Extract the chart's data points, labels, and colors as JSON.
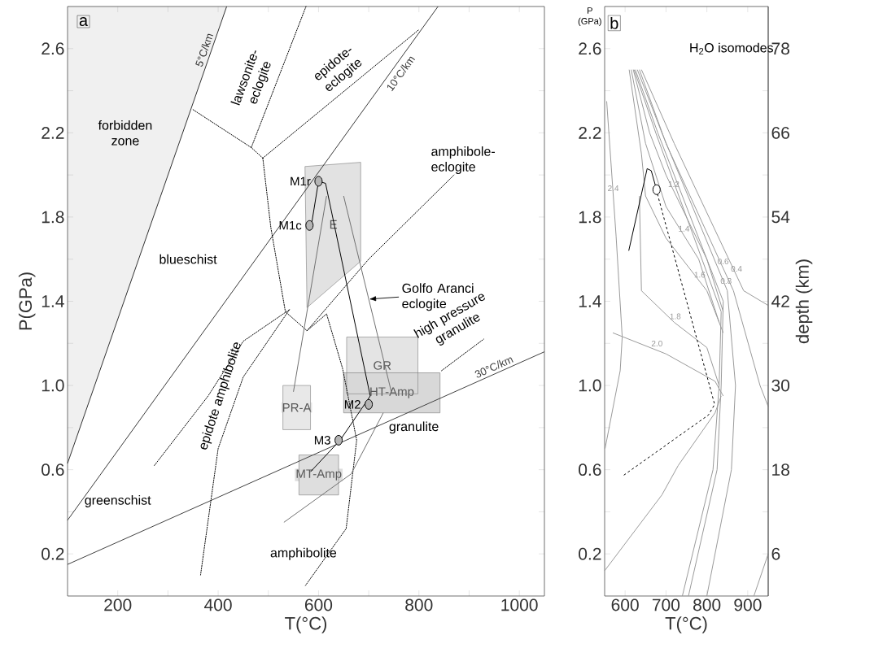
{
  "chart_data": [
    {
      "type": "line",
      "title": "a",
      "xlabel": "T(°C)",
      "ylabel": "P(GPa)",
      "xlim": [
        100,
        1050
      ],
      "ylim": [
        0,
        2.8
      ],
      "xticks": [
        200,
        {
          "value": 300,
          "label": null
        },
        400,
        {
          "value": 500,
          "label": null
        },
        600,
        {
          "value": 700,
          "label": null
        },
        800,
        {
          "value": 900,
          "label": null
        },
        1000
      ],
      "yticks": [
        0.2,
        {
          "value": 0.4,
          "label": null
        },
        0.6,
        {
          "value": 0.8,
          "label": null
        },
        {
          "value": 1,
          "label": "1.0"
        },
        {
          "value": 1.2,
          "label": null
        },
        1.4,
        {
          "value": 1.6,
          "label": null
        },
        1.8,
        {
          "value": 2,
          "label": null
        },
        2.2,
        {
          "value": 2.4,
          "label": null
        },
        2.6
      ],
      "series": [
        {
          "type": "area",
          "name": "E",
          "color": "#e2e2e2",
          "x": [
            573,
            684,
            684,
            577
          ],
          "values": [
            2.04,
            2.06,
            1.59,
            1.37
          ]
        },
        {
          "type": "area",
          "name": "GR",
          "color": "#e4e4e4",
          "x": [
            656,
            798,
            798,
            656
          ],
          "values": [
            0.96,
            0.96,
            1.23,
            1.23
          ]
        },
        {
          "type": "area",
          "name": "HT-Amp",
          "color": "#d8d8d8",
          "x": [
            650,
            842,
            842,
            650
          ],
          "values": [
            0.87,
            0.87,
            1.06,
            1.06
          ]
        },
        {
          "type": "area",
          "name": "PR-A",
          "color": "#e8e8e8",
          "x": [
            529,
            584,
            584,
            529
          ],
          "values": [
            0.79,
            0.79,
            1.0,
            1.0
          ]
        },
        {
          "type": "area",
          "name": "MT-Amp",
          "color": "#dedede",
          "x": [
            561,
            640,
            640,
            561
          ],
          "values": [
            0.48,
            0.48,
            0.67,
            0.67
          ]
        },
        {
          "name": "5°C/km",
          "color": "#303030",
          "line_style": "solid",
          "x": [
            100,
            417
          ],
          "values": [
            0.63,
            2.8
          ]
        },
        {
          "name": "10°C/km",
          "color": "#383838",
          "line_style": "solid",
          "x": [
            100,
            838
          ],
          "values": [
            0.36,
            2.8
          ]
        },
        {
          "name": "30°C/km",
          "color": "#404040",
          "line_style": "solid",
          "x": [
            100,
            1050
          ],
          "values": [
            0.15,
            1.16
          ]
        },
        {
          "color": "#000000",
          "line_style": "dotted",
          "x": [
            350,
            466,
            489
          ],
          "values": [
            2.31,
            2.13,
            2.08
          ]
        },
        {
          "color": "#000000",
          "line_style": "dotted",
          "x": [
            466,
            575
          ],
          "values": [
            2.13,
            2.8
          ]
        },
        {
          "color": "#000000",
          "line_style": "dotted",
          "x": [
            489,
            800
          ],
          "values": [
            2.08,
            2.69
          ]
        },
        {
          "color": "#000000",
          "line_style": "dotted",
          "x": [
            489,
            505,
            534,
            577
          ],
          "values": [
            2.08,
            1.75,
            1.35,
            1.26
          ]
        },
        {
          "color": "#000000",
          "line_style": "dotted",
          "x": [
            577,
            700,
            870
          ],
          "values": [
            1.26,
            1.6,
            2.0
          ]
        },
        {
          "color": "#000000",
          "line_style": "dotted",
          "x": [
            845,
            929
          ],
          "values": [
            1.07,
            1.22
          ]
        },
        {
          "color": "#000000",
          "line_style": "dotted",
          "x": [
            273,
            380,
            450,
            542
          ],
          "values": [
            0.62,
            0.95,
            1.21,
            1.36
          ]
        },
        {
          "color": "#000000",
          "line_style": "dotted",
          "x": [
            542,
            450,
            400,
            365
          ],
          "values": [
            1.36,
            1.04,
            0.7,
            0.1
          ]
        },
        {
          "color": "#000000",
          "line_style": "dotted",
          "x": [
            577,
            616,
            648,
            676,
            655,
            574
          ],
          "values": [
            1.26,
            1.34,
            1.08,
            0.74,
            0.32,
            0.05
          ]
        },
        {
          "color": "#707070",
          "line_style": "solid",
          "x": [
            616,
            550
          ],
          "values": [
            1.9,
            0.97
          ]
        },
        {
          "color": "#707070",
          "line_style": "solid",
          "x": [
            650,
            745
          ],
          "values": [
            1.9,
            0.97
          ]
        },
        {
          "color": "#707070",
          "line_style": "solid",
          "x": [
            729,
            665,
            531
          ],
          "values": [
            0.87,
            0.58,
            0.35
          ]
        },
        {
          "color": "#000000",
          "line_style": "solid",
          "x": [
            585,
            600,
            614,
            703,
            643,
            584
          ],
          "values": [
            1.75,
            1.97,
            1.96,
            0.95,
            0.74,
            0.59
          ]
        },
        {
          "type": "scatter",
          "name": "M1r",
          "color": "#b4b4b4",
          "marker": "circle",
          "x": [
            600
          ],
          "values": [
            1.97
          ]
        },
        {
          "type": "scatter",
          "name": "M1c",
          "color": "#b4b4b4",
          "marker": "circle",
          "x": [
            582
          ],
          "values": [
            1.76
          ]
        },
        {
          "type": "scatter",
          "name": "M2",
          "color": "#b4b4b4",
          "marker": "circle",
          "x": [
            700
          ],
          "values": [
            0.91
          ]
        },
        {
          "type": "scatter",
          "name": "M3",
          "color": "#b4b4b4",
          "marker": "circle",
          "x": [
            640
          ],
          "values": [
            0.74
          ]
        }
      ],
      "annotations": [
        "lawsonite-eclogite",
        "epidote-eclogite",
        "amphibole-eclogite",
        "blueschist",
        {
          "text": "Golfo Aranci eclogite",
          "x": 700,
          "y": 1.41
        },
        "high pressure granulite",
        "epidote amphibolite",
        "greenschist",
        "amphibolite",
        "granulite",
        "forbidden zone"
      ]
    },
    {
      "type": "line",
      "title": "b",
      "xlabel": "T(°C)",
      "ylabel": "P (GPa)",
      "y2label": "depth (km)",
      "xlim": [
        550,
        950
      ],
      "ylim": [
        0,
        2.8
      ],
      "xticks": [
        600,
        700,
        800,
        900
      ],
      "yticks": [
        0.2,
        {
          "value": 0.4,
          "label": null
        },
        0.6,
        {
          "value": 0.8,
          "label": null
        },
        {
          "value": 1,
          "label": "1.0"
        },
        {
          "value": 1.2,
          "label": null
        },
        1.4,
        {
          "value": 1.6,
          "label": null
        },
        1.8,
        {
          "value": 2,
          "label": null
        },
        2.2,
        {
          "value": 2.4,
          "label": null
        },
        2.6
      ],
      "y2lim": [
        0,
        84
      ],
      "y2ticks": [
        6,
        {
          "value": 12,
          "label": null
        },
        18,
        {
          "value": 24,
          "label": null
        },
        30,
        {
          "value": 36,
          "label": null
        },
        42,
        {
          "value": 48,
          "label": null
        },
        54,
        {
          "value": 60,
          "label": null
        },
        66,
        {
          "value": 72,
          "label": null
        },
        78
      ],
      "series": [
        {
          "name": "0.4",
          "color": "#9a9a9a",
          "line_style": "solid",
          "x": [
            640,
            720,
            890,
            950
          ],
          "values": [
            2.5,
            2.15,
            1.45,
            1.38
          ]
        },
        {
          "name": "0.6",
          "color": "#9a9a9a",
          "line_style": "solid",
          "x": [
            635,
            700,
            865,
            930,
            950
          ],
          "values": [
            2.5,
            2.15,
            1.45,
            1.0,
            0.9
          ]
        },
        {
          "name": "0.8",
          "color": "#9a9a9a",
          "line_style": "solid",
          "x": [
            630,
            690,
            850,
            870,
            860,
            800
          ],
          "values": [
            2.5,
            2.2,
            1.45,
            1.0,
            0.6,
            0.0
          ]
        },
        {
          "color": "#9a9a9a",
          "line_style": "solid",
          "x": [
            625,
            680,
            840,
            835,
            825,
            755
          ],
          "values": [
            2.5,
            2.2,
            1.4,
            1.0,
            0.6,
            0.0
          ]
        },
        {
          "color": "#9a9a9a",
          "line_style": "solid",
          "x": [
            622,
            675,
            835,
            830,
            815,
            740
          ],
          "values": [
            2.5,
            2.2,
            1.35,
            1.0,
            0.6,
            0.0
          ]
        },
        {
          "name": "1.2",
          "color": "#9a9a9a",
          "line_style": "solid",
          "x": [
            620,
            660,
            700,
            800,
            840
          ],
          "values": [
            2.5,
            2.2,
            2.0,
            1.6,
            1.35
          ]
        },
        {
          "name": "1.4",
          "color": "#9a9a9a",
          "line_style": "solid",
          "x": [
            615,
            650,
            700,
            780,
            830
          ],
          "values": [
            2.5,
            2.15,
            1.85,
            1.6,
            1.3
          ]
        },
        {
          "name": "1.6",
          "color": "#9a9a9a",
          "line_style": "solid",
          "x": [
            610,
            640,
            650,
            700,
            800,
            840
          ],
          "values": [
            2.5,
            2.1,
            1.9,
            1.7,
            1.45,
            1.25
          ]
        },
        {
          "name": "1.8",
          "color": "#9a9a9a",
          "line_style": "solid",
          "x": [
            635,
            640,
            720,
            800,
            830
          ],
          "values": [
            1.9,
            1.45,
            1.3,
            1.18,
            1.0
          ]
        },
        {
          "name": "2.0",
          "color": "#9a9a9a",
          "line_style": "solid",
          "x": [
            570,
            700,
            820,
            840
          ],
          "values": [
            1.25,
            1.15,
            1.02,
            0.95
          ]
        },
        {
          "name": "2.4",
          "color": "#9a9a9a",
          "line_style": "solid",
          "x": [
            555,
            578,
            593,
            588,
            551
          ],
          "values": [
            2.35,
            1.71,
            1.23,
            1.07,
            0.7
          ]
        },
        {
          "color": "#9a9a9a",
          "line_style": "solid",
          "x": [
            550,
            690,
            730,
            820,
            835
          ],
          "values": [
            0.12,
            0.48,
            0.62,
            0.87,
            0.95
          ]
        },
        {
          "color": "#9a9a9a",
          "line_style": "solid",
          "x": [
            915,
            950
          ],
          "values": [
            0.0,
            0.2
          ]
        },
        {
          "color": "#000000",
          "line_style": "solid",
          "x": [
            609,
            654,
            664,
            677
          ],
          "values": [
            1.64,
            2.03,
            2.02,
            1.93
          ]
        },
        {
          "color": "#000000",
          "line_style": "dashed",
          "x": [
            679,
            819,
            804,
            594
          ],
          "values": [
            1.91,
            0.91,
            0.86,
            0.57
          ]
        },
        {
          "type": "scatter",
          "color": "#ffffff",
          "marker": "circle",
          "x": [
            677
          ],
          "values": [
            1.93
          ]
        }
      ],
      "annotations": [
        "H$_{2}$O isomodes"
      ]
    }
  ]
}
